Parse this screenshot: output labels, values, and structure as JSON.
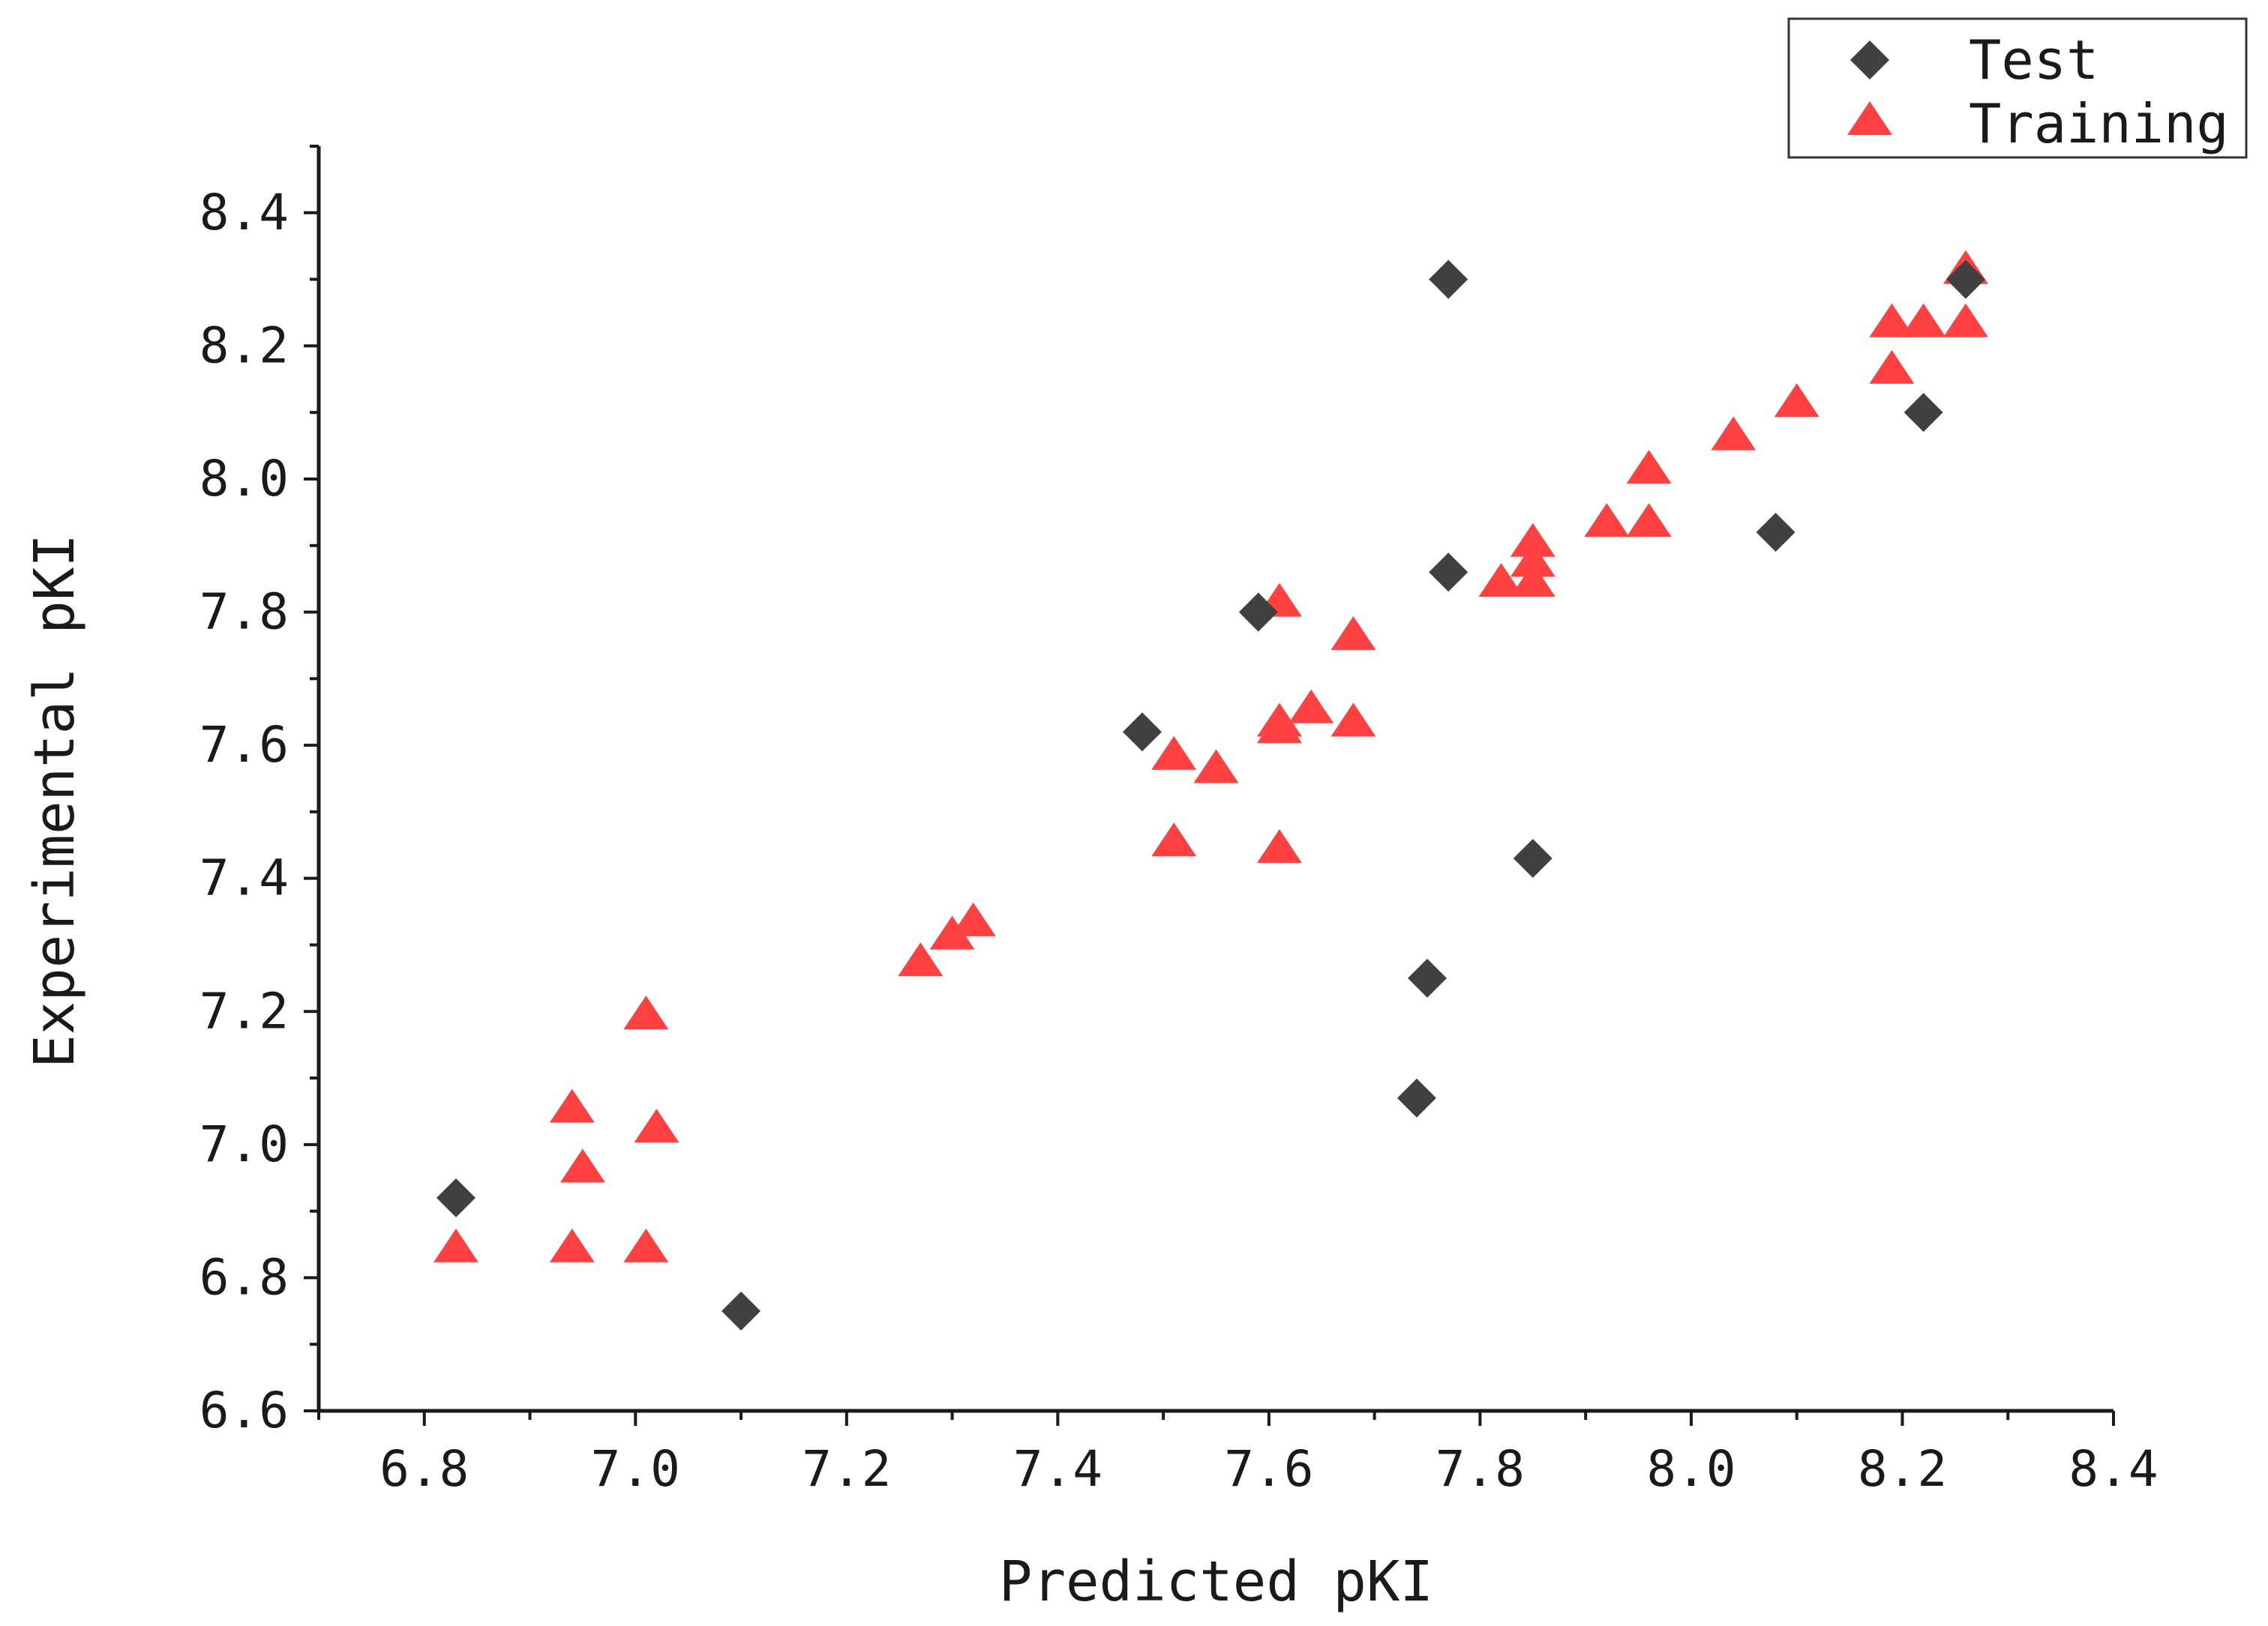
{
  "chart_data": {
    "type": "scatter",
    "title": "",
    "xlabel": "Predicted pKI",
    "ylabel": "Experimental pKI",
    "xlim": [
      6.7,
      8.4
    ],
    "ylim": [
      6.6,
      8.5
    ],
    "xticks": [
      "6.8",
      "7.0",
      "7.2",
      "7.4",
      "7.6",
      "7.8",
      "8.0",
      "8.2",
      "8.4"
    ],
    "yticks": [
      "6.6",
      "6.8",
      "7.0",
      "7.2",
      "7.4",
      "7.6",
      "7.8",
      "8.0",
      "8.2",
      "8.4"
    ],
    "grid": false,
    "legend_position": "top-right",
    "series": [
      {
        "name": "Test",
        "marker": "diamond",
        "color": "#404040",
        "points": [
          [
            6.83,
            6.92
          ],
          [
            7.1,
            6.75
          ],
          [
            7.48,
            7.62
          ],
          [
            7.59,
            7.8
          ],
          [
            7.77,
            8.3
          ],
          [
            7.77,
            7.86
          ],
          [
            7.75,
            7.25
          ],
          [
            7.74,
            7.07
          ],
          [
            7.85,
            7.43
          ],
          [
            8.08,
            7.92
          ],
          [
            8.22,
            8.1
          ],
          [
            8.26,
            8.3
          ]
        ]
      },
      {
        "name": "Training",
        "marker": "triangle",
        "color": "#ff4040",
        "points": [
          [
            6.83,
            6.84
          ],
          [
            6.94,
            6.84
          ],
          [
            7.01,
            6.84
          ],
          [
            6.95,
            6.96
          ],
          [
            6.94,
            7.05
          ],
          [
            7.02,
            7.02
          ],
          [
            7.01,
            7.19
          ],
          [
            7.27,
            7.27
          ],
          [
            7.3,
            7.31
          ],
          [
            7.32,
            7.33
          ],
          [
            7.51,
            7.45
          ],
          [
            7.51,
            7.58
          ],
          [
            7.55,
            7.56
          ],
          [
            7.61,
            7.44
          ],
          [
            7.61,
            7.62
          ],
          [
            7.61,
            7.63
          ],
          [
            7.64,
            7.65
          ],
          [
            7.61,
            7.81
          ],
          [
            7.68,
            7.63
          ],
          [
            7.68,
            7.76
          ],
          [
            7.82,
            7.84
          ],
          [
            7.85,
            7.84
          ],
          [
            7.85,
            7.87
          ],
          [
            7.85,
            7.9
          ],
          [
            7.92,
            7.93
          ],
          [
            7.96,
            7.93
          ],
          [
            7.96,
            8.01
          ],
          [
            8.04,
            8.06
          ],
          [
            8.1,
            8.11
          ],
          [
            8.19,
            8.16
          ],
          [
            8.19,
            8.23
          ],
          [
            8.22,
            8.23
          ],
          [
            8.26,
            8.23
          ],
          [
            8.26,
            8.31
          ]
        ]
      }
    ]
  }
}
